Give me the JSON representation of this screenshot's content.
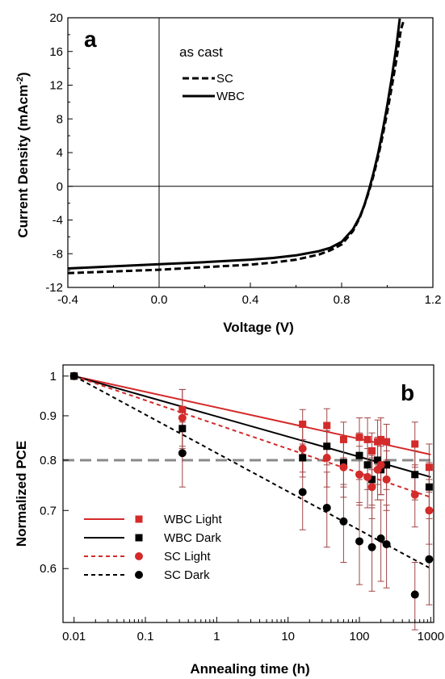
{
  "colors": {
    "red": "#d42a2a",
    "black": "#000000",
    "gray": "#8a8a8a",
    "errbar": "#a14545"
  },
  "chart_data": [
    {
      "type": "line",
      "panel": "a",
      "annotation": "as cast",
      "xlabel": "Voltage (V)",
      "ylabel_main": "Current Density (mAcm",
      "ylabel_sup": "-2",
      "ylabel_close": ")",
      "xlim": [
        -0.4,
        1.2
      ],
      "ylim": [
        -12,
        20
      ],
      "xticks": [
        -0.4,
        0.0,
        0.4,
        0.8,
        1.2
      ],
      "xtick_labels": [
        "-0.4",
        "0.0",
        "0.4",
        "0.8",
        "1.2"
      ],
      "yticks": [
        -12,
        -8,
        -4,
        0,
        4,
        8,
        12,
        16,
        20
      ],
      "ytick_labels": [
        "-12",
        "-8",
        "-4",
        "0",
        "4",
        "8",
        "12",
        "16",
        "20"
      ],
      "legend": "top-left",
      "series": [
        {
          "name": "SC",
          "style": "dashed",
          "x": [
            -0.4,
            -0.2,
            0.0,
            0.2,
            0.4,
            0.5,
            0.6,
            0.7,
            0.75,
            0.8,
            0.85,
            0.88,
            0.9,
            0.92,
            0.94,
            0.96,
            0.98,
            1.0,
            1.02,
            1.04,
            1.06,
            1.07
          ],
          "y": [
            -10.3,
            -10.1,
            -9.9,
            -9.6,
            -9.3,
            -9.05,
            -8.7,
            -8.1,
            -7.6,
            -6.9,
            -5.3,
            -3.7,
            -2.2,
            -0.6,
            1.3,
            3.5,
            6.0,
            8.8,
            11.8,
            15.0,
            18.6,
            19.5
          ]
        },
        {
          "name": "WBC",
          "style": "solid",
          "x": [
            -0.4,
            -0.2,
            0.0,
            0.2,
            0.4,
            0.5,
            0.6,
            0.7,
            0.75,
            0.8,
            0.85,
            0.88,
            0.9,
            0.92,
            0.94,
            0.96,
            0.98,
            1.0,
            1.02,
            1.04,
            1.055
          ],
          "y": [
            -9.75,
            -9.5,
            -9.25,
            -9.0,
            -8.7,
            -8.5,
            -8.2,
            -7.7,
            -7.3,
            -6.6,
            -5.1,
            -3.6,
            -2.2,
            -0.4,
            1.6,
            3.9,
            6.6,
            9.6,
            12.9,
            16.6,
            19.9
          ]
        }
      ]
    },
    {
      "type": "scatter",
      "panel": "b",
      "xlabel": "Annealing time (h)",
      "ylabel": "Normalized PCE",
      "xscale": "log",
      "yscale": "log",
      "xlim": [
        0.007,
        1100
      ],
      "ylim": [
        0.52,
        1.03
      ],
      "xticks": [
        0.01,
        0.1,
        1,
        10,
        100,
        1000
      ],
      "xtick_labels": [
        "0.01",
        "0.1",
        "1",
        "10",
        "100",
        "1000"
      ],
      "yticks": [
        0.6,
        0.7,
        0.8,
        0.9,
        1
      ],
      "ytick_labels": [
        "0.6",
        "0.7",
        "0.8",
        "0.9",
        "1"
      ],
      "reference_line": {
        "y": 0.8,
        "style": "dashed",
        "color": "gray"
      },
      "legend": "bottom-left",
      "series": [
        {
          "name": "WBC Light",
          "color": "red",
          "marker": "square",
          "line": "solid",
          "x": [
            0.01,
            0.33,
            16,
            35,
            60,
            100,
            130,
            150,
            180,
            200,
            240,
            600,
            950
          ],
          "y": [
            1.0,
            0.915,
            0.88,
            0.877,
            0.845,
            0.85,
            0.845,
            0.82,
            0.84,
            0.845,
            0.84,
            0.835,
            0.785
          ],
          "err": [
            0,
            0.05,
            0.035,
            0.04,
            0.04,
            0.045,
            0.05,
            0.04,
            0.05,
            0.05,
            0.04,
            0.05,
            0.05
          ],
          "fit": {
            "x": [
              0.01,
              1000
            ],
            "y": [
              1.0,
              0.812
            ]
          }
        },
        {
          "name": "WBC Dark",
          "color": "black",
          "marker": "square",
          "line": "solid",
          "x": [
            0.01,
            0.33,
            16,
            35,
            60,
            100,
            130,
            150,
            180,
            200,
            240,
            600,
            950
          ],
          "y": [
            1.0,
            0.87,
            0.805,
            0.83,
            0.795,
            0.81,
            0.79,
            0.76,
            0.8,
            0.78,
            0.79,
            0.77,
            0.745
          ],
          "err": [
            0,
            0.04,
            0.03,
            0.04,
            0.05,
            0.05,
            0.05,
            0.05,
            0.05,
            0.05,
            0.05,
            0.05,
            0.05
          ],
          "fit": {
            "x": [
              0.01,
              1000
            ],
            "y": [
              1.0,
              0.765
            ]
          }
        },
        {
          "name": "SC Light",
          "color": "red",
          "marker": "circle",
          "line": "dashed",
          "x": [
            0.01,
            0.33,
            16,
            35,
            60,
            100,
            130,
            150,
            180,
            200,
            240,
            600,
            950
          ],
          "y": [
            1.0,
            0.895,
            0.825,
            0.805,
            0.785,
            0.77,
            0.765,
            0.745,
            0.78,
            0.79,
            0.76,
            0.73,
            0.7
          ],
          "err": [
            0,
            0.07,
            0.06,
            0.06,
            0.06,
            0.06,
            0.06,
            0.06,
            0.06,
            0.06,
            0.06,
            0.06,
            0.06
          ],
          "fit": {
            "x": [
              0.01,
              1000
            ],
            "y": [
              1.0,
              0.725
            ]
          }
        },
        {
          "name": "SC Dark",
          "color": "black",
          "marker": "circle",
          "line": "dashed",
          "x": [
            0.01,
            0.33,
            16,
            35,
            60,
            100,
            150,
            200,
            240,
            600,
            950
          ],
          "y": [
            1.0,
            0.815,
            0.735,
            0.705,
            0.68,
            0.645,
            0.635,
            0.65,
            0.64,
            0.56,
            0.615
          ],
          "err": [
            0,
            0.07,
            0.07,
            0.07,
            0.07,
            0.07,
            0.07,
            0.07,
            0.07,
            0.05,
            0.07
          ],
          "fit": {
            "x": [
              0.01,
              1000
            ],
            "y": [
              1.0,
              0.6
            ]
          }
        }
      ]
    }
  ]
}
